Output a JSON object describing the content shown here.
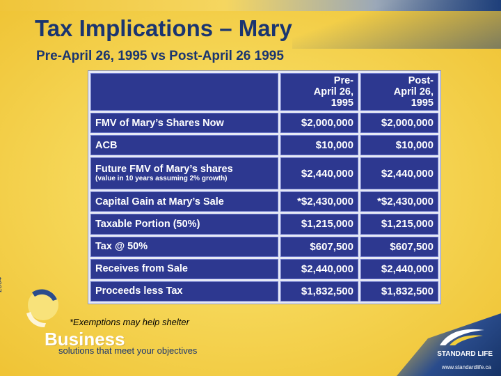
{
  "slide": {
    "title": "Tax Implications – Mary",
    "subtitle": "Pre-April 26, 1995 vs Post-April 26 1995",
    "year": "2004",
    "footnote": "*Exemptions may help shelter"
  },
  "table": {
    "headers": {
      "pre": [
        "Pre-",
        "April 26,",
        "1995"
      ],
      "post": [
        "Post-",
        "April 26,",
        "1995"
      ]
    },
    "rows": [
      {
        "label": "FMV of Mary’s Shares Now",
        "note": "",
        "pre": "$2,000,000",
        "post": "$2,000,000"
      },
      {
        "label": "ACB",
        "note": "",
        "pre": "$10,000",
        "post": "$10,000"
      },
      {
        "label": "Future FMV of Mary’s shares",
        "note": "(value in 10 years assuming 2% growth)",
        "pre": "$2,440,000",
        "post": "$2,440,000"
      },
      {
        "label": "Capital Gain at Mary’s Sale",
        "note": "",
        "pre": "*$2,430,000",
        "post": "*$2,430,000"
      },
      {
        "label": "Taxable Portion (50%)",
        "note": "",
        "pre": "$1,215,000",
        "post": "$1,215,000"
      },
      {
        "label": "Tax @ 50%",
        "note": "",
        "pre": "$607,500",
        "post": "$607,500"
      },
      {
        "label": "Receives from Sale",
        "note": "",
        "pre": "$2,440,000",
        "post": "$2,440,000"
      },
      {
        "label": "Proceeds less Tax",
        "note": "",
        "pre": "$1,832,500",
        "post": "$1,832,500"
      }
    ]
  },
  "branding": {
    "brand": "Business",
    "tagline": "solutions that meet your objectives",
    "company": "STANDARD LIFE",
    "url": "www.standardlife.ca"
  },
  "colors": {
    "cell_bg": "#2d3890",
    "title": "#1a3570",
    "background": "#f2ce3a"
  }
}
